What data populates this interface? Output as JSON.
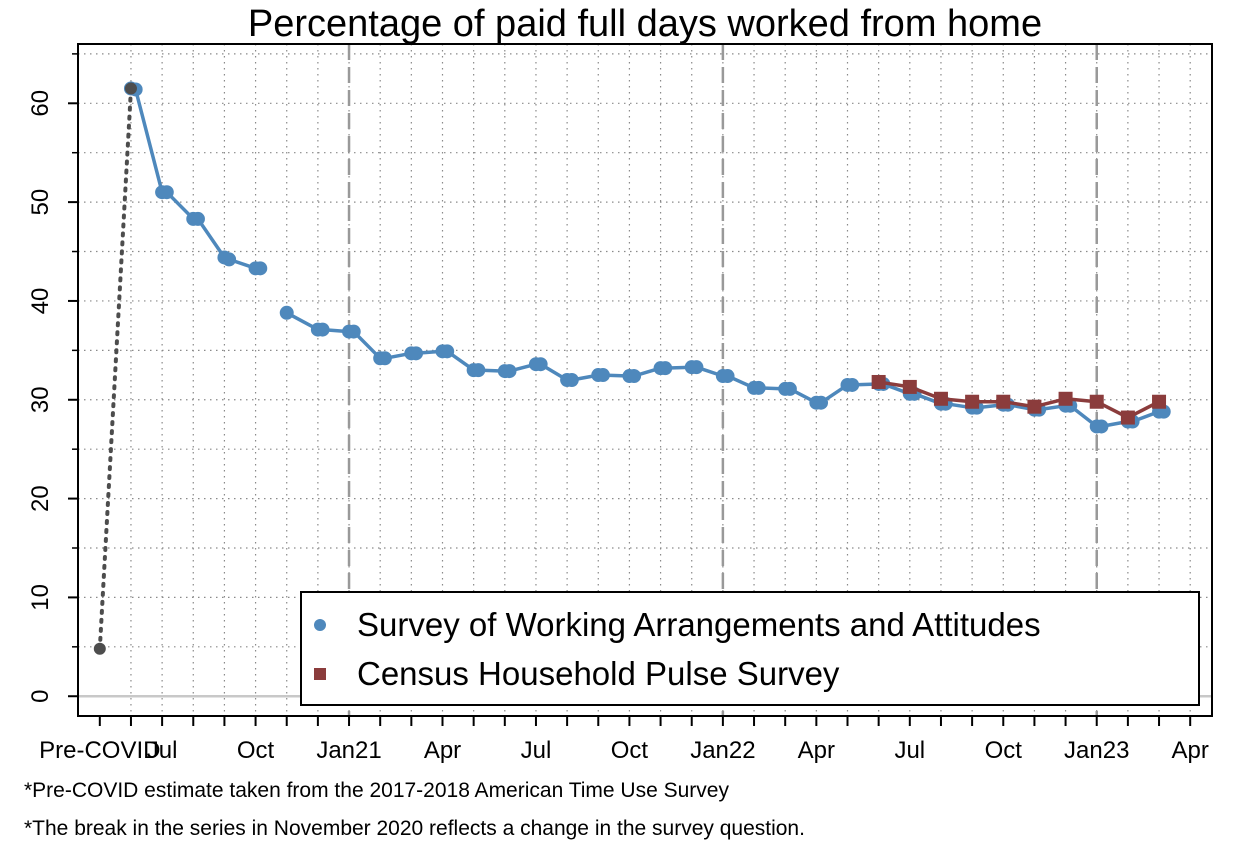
{
  "chart_data": {
    "type": "line",
    "title": "Percentage of paid full days worked from home",
    "xlabel": "",
    "ylabel": "",
    "ylim": [
      -2,
      66
    ],
    "yticks": [
      0,
      10,
      20,
      30,
      40,
      50,
      60
    ],
    "x_tick_labels": [
      {
        "x": 0,
        "label": "Pre-COVID"
      },
      {
        "x": 2,
        "label": "Jul"
      },
      {
        "x": 5,
        "label": "Oct"
      },
      {
        "x": 8,
        "label": "Jan21"
      },
      {
        "x": 11,
        "label": "Apr"
      },
      {
        "x": 14,
        "label": "Jul"
      },
      {
        "x": 17,
        "label": "Oct"
      },
      {
        "x": 20,
        "label": "Jan22"
      },
      {
        "x": 23,
        "label": "Apr"
      },
      {
        "x": 26,
        "label": "Jul"
      },
      {
        "x": 29,
        "label": "Oct"
      },
      {
        "x": 32,
        "label": "Jan23"
      },
      {
        "x": 35,
        "label": "Apr"
      }
    ],
    "xlim": [
      -0.7,
      35.7
    ],
    "vertical_dashed_lines_x": [
      8,
      20,
      32
    ],
    "grid": true,
    "legend_position": "bottom-right",
    "series": [
      {
        "name": "Survey of Working Arrangements and Attitudes",
        "color": "#4e88bc",
        "marker": "circle",
        "segments": [
          [
            [
              1,
              61.5
            ],
            [
              1.15,
              61.4
            ],
            [
              2,
              51.0
            ],
            [
              2.15,
              51.0
            ],
            [
              3,
              48.3
            ],
            [
              3.15,
              48.3
            ],
            [
              4,
              44.4
            ],
            [
              4.15,
              44.2
            ],
            [
              5,
              43.3
            ],
            [
              5.15,
              43.3
            ]
          ],
          [
            [
              6,
              38.8
            ],
            [
              7,
              37.1
            ],
            [
              7.15,
              37.1
            ],
            [
              8,
              36.9
            ],
            [
              8.15,
              36.9
            ],
            [
              9,
              34.2
            ],
            [
              9.15,
              34.2
            ],
            [
              10,
              34.7
            ],
            [
              10.15,
              34.7
            ],
            [
              11,
              34.9
            ],
            [
              11.15,
              34.9
            ],
            [
              12,
              33.0
            ],
            [
              12.15,
              33.0
            ],
            [
              13,
              32.9
            ],
            [
              13.15,
              32.9
            ],
            [
              14,
              33.6
            ],
            [
              14.15,
              33.6
            ],
            [
              15,
              32.0
            ],
            [
              15.15,
              32.0
            ],
            [
              16,
              32.5
            ],
            [
              16.15,
              32.5
            ],
            [
              17,
              32.4
            ],
            [
              17.15,
              32.4
            ],
            [
              18,
              33.2
            ],
            [
              18.15,
              33.2
            ],
            [
              19,
              33.3
            ],
            [
              19.15,
              33.3
            ],
            [
              20,
              32.4
            ],
            [
              20.15,
              32.4
            ],
            [
              21,
              31.2
            ],
            [
              21.15,
              31.2
            ],
            [
              22,
              31.1
            ],
            [
              22.15,
              31.1
            ],
            [
              23,
              29.7
            ],
            [
              23.15,
              29.7
            ],
            [
              24,
              31.5
            ],
            [
              24.15,
              31.5
            ],
            [
              25,
              31.6
            ],
            [
              25.15,
              31.6
            ],
            [
              26,
              30.6
            ],
            [
              26.15,
              30.6
            ],
            [
              27,
              29.6
            ],
            [
              27.15,
              29.6
            ],
            [
              28,
              29.2
            ],
            [
              28.15,
              29.2
            ],
            [
              29,
              29.5
            ],
            [
              29.15,
              29.5
            ],
            [
              30,
              29.0
            ],
            [
              30.15,
              29.0
            ],
            [
              31,
              29.4
            ],
            [
              31.15,
              29.4
            ],
            [
              32,
              27.3
            ],
            [
              32.15,
              27.3
            ],
            [
              33,
              27.8
            ],
            [
              33.15,
              27.8
            ],
            [
              34,
              28.8
            ],
            [
              34.15,
              28.8
            ]
          ]
        ]
      },
      {
        "name": "Census Household Pulse Survey",
        "color": "#8b3c3c",
        "marker": "square",
        "segments": [
          [
            [
              25,
              31.8
            ],
            [
              26,
              31.3
            ],
            [
              27,
              30.1
            ],
            [
              28,
              29.8
            ],
            [
              29,
              29.8
            ],
            [
              30,
              29.3
            ],
            [
              31,
              30.1
            ],
            [
              32,
              29.8
            ],
            [
              33,
              28.2
            ],
            [
              34,
              29.8
            ]
          ]
        ]
      },
      {
        "name": "",
        "color": "#4d4d4d",
        "marker": "circle",
        "style": "dotted",
        "segments": [
          [
            [
              0,
              4.8
            ],
            [
              1,
              61.5
            ]
          ]
        ]
      }
    ],
    "notes": [
      "*Pre-COVID estimate taken from the 2017-2018 American Time Use Survey",
      "*The break in the series in November 2020 reflects a change in the survey question."
    ]
  }
}
